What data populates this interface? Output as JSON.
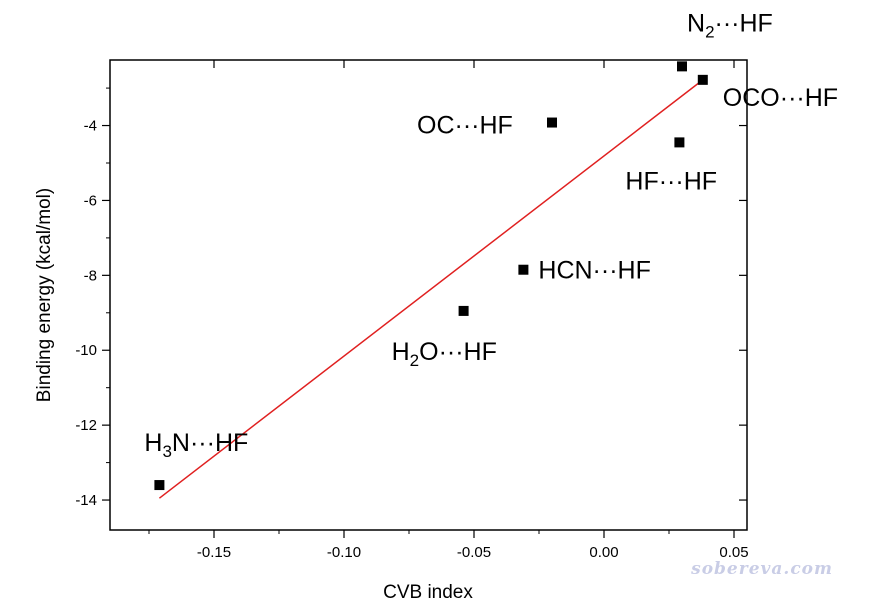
{
  "chart_data": {
    "type": "scatter",
    "xlabel": "CVB index",
    "ylabel": "Binding energy (kcal/mol)",
    "xlim": [
      -0.19,
      0.055
    ],
    "ylim": [
      -14.8,
      -2.25
    ],
    "x_ticks": [
      -0.15,
      -0.1,
      -0.05,
      0.0,
      0.05
    ],
    "x_tick_labels": [
      "-0.15",
      "-0.10",
      "-0.05",
      "0.00",
      "0.05"
    ],
    "y_ticks": [
      -14,
      -12,
      -10,
      -8,
      -6,
      -4
    ],
    "y_tick_labels": [
      "-14",
      "-12",
      "-10",
      "-8",
      "-6",
      "-4"
    ],
    "points": [
      {
        "x": -0.171,
        "y": -13.6,
        "label": {
          "main": "H",
          "sub": "3",
          "rest": "N···HF"
        },
        "label_pos": "above"
      },
      {
        "x": -0.054,
        "y": -8.95,
        "label": {
          "main": "H",
          "sub": "2",
          "rest": "O···HF"
        },
        "label_pos": "below-left"
      },
      {
        "x": -0.031,
        "y": -7.85,
        "label": {
          "main": "HCN···HF",
          "sub": "",
          "rest": ""
        },
        "label_pos": "right"
      },
      {
        "x": -0.02,
        "y": -3.92,
        "label": {
          "main": "OC···HF",
          "sub": "",
          "rest": ""
        },
        "label_pos": "left"
      },
      {
        "x": 0.029,
        "y": -4.45,
        "label": {
          "main": "HF···HF",
          "sub": "",
          "rest": ""
        },
        "label_pos": "below"
      },
      {
        "x": 0.03,
        "y": -2.42,
        "label": {
          "main": "N",
          "sub": "2",
          "rest": "···HF"
        },
        "label_pos": "above"
      },
      {
        "x": 0.038,
        "y": -2.78,
        "label": {
          "main": "OCO···HF",
          "sub": "",
          "rest": ""
        },
        "label_pos": "right"
      }
    ],
    "fit_line": {
      "x": [
        -0.171,
        0.038
      ],
      "y": [
        -13.95,
        -2.78
      ],
      "color": "#e02020"
    },
    "marker_color": "#000000"
  },
  "watermark": "sobereva.com"
}
